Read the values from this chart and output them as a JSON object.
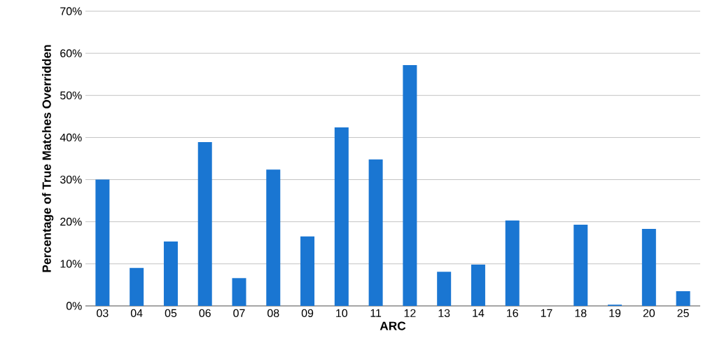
{
  "chart_data": {
    "type": "bar",
    "xlabel": "ARC",
    "ylabel": "Percentage of True Matches Overridden",
    "categories": [
      "03",
      "04",
      "05",
      "06",
      "07",
      "08",
      "09",
      "10",
      "11",
      "12",
      "13",
      "14",
      "16",
      "17",
      "18",
      "19",
      "20",
      "25"
    ],
    "values": [
      30,
      9,
      15.3,
      38.9,
      6.6,
      32.4,
      16.5,
      42.4,
      34.8,
      57.2,
      8.1,
      9.8,
      20.3,
      0,
      19.3,
      0.3,
      18.3,
      3.5
    ],
    "color": "#1a76d2",
    "ylim": [
      0,
      70
    ],
    "yticks": [
      {
        "value": 0,
        "label": "0%"
      },
      {
        "value": 10,
        "label": "10%"
      },
      {
        "value": 20,
        "label": "20%"
      },
      {
        "value": 30,
        "label": "30%"
      },
      {
        "value": 40,
        "label": "40%"
      },
      {
        "value": 50,
        "label": "50%"
      },
      {
        "value": 60,
        "label": "60%"
      },
      {
        "value": 70,
        "label": "70%"
      }
    ],
    "grid": "y"
  }
}
